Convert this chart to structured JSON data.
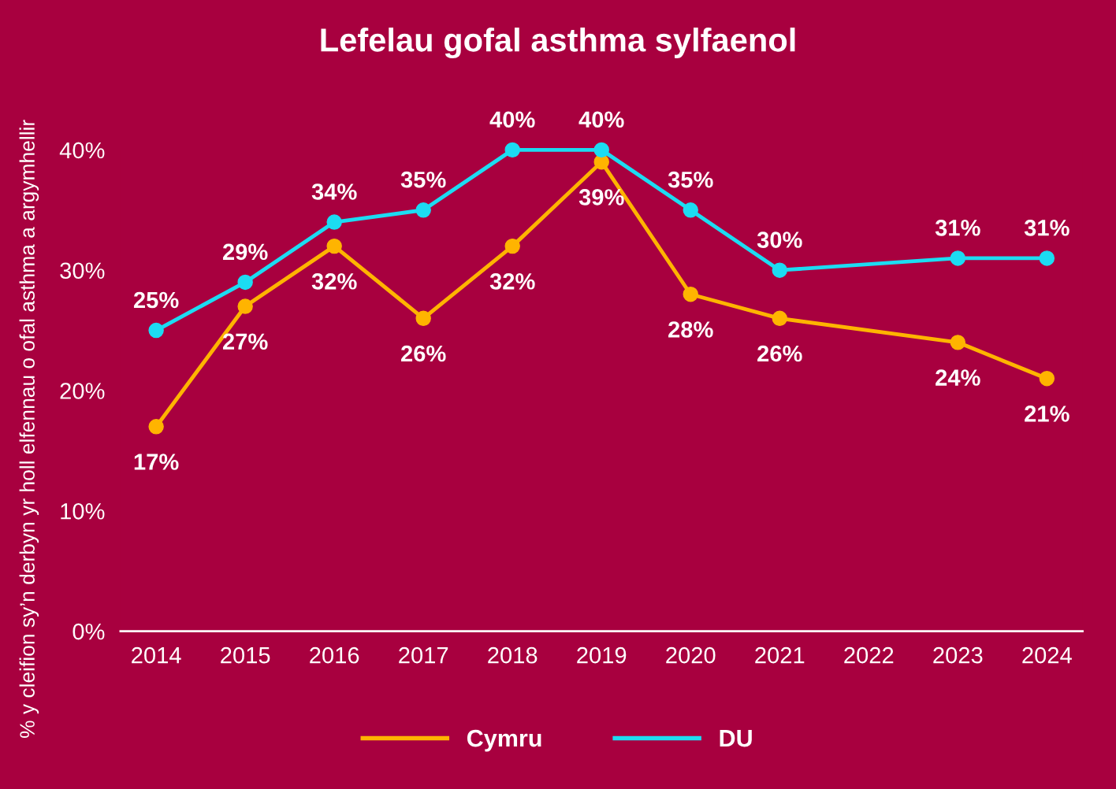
{
  "chart_data": {
    "type": "line",
    "title": "Lefelau gofal asthma sylfaenol",
    "ylabel": "% y cleifion sy’n derbyn yr holl elfennau o ofal asthma a argymhellir",
    "categories": [
      "2014",
      "2015",
      "2016",
      "2017",
      "2018",
      "2019",
      "2020",
      "2021",
      "2022",
      "2023",
      "2024"
    ],
    "series": [
      {
        "name": "Cymru",
        "color": "#ffb400",
        "values": [
          17,
          27,
          32,
          26,
          32,
          39,
          28,
          26,
          null,
          24,
          21
        ],
        "value_labels": [
          "17%",
          "27%",
          "32%",
          "26%",
          "32%",
          "39%",
          "28%",
          "26%",
          null,
          "24%",
          "21%"
        ]
      },
      {
        "name": "DU",
        "color": "#1cdcf2",
        "values": [
          25,
          29,
          34,
          35,
          40,
          40,
          35,
          30,
          null,
          31,
          31
        ],
        "value_labels": [
          "25%",
          "29%",
          "34%",
          "35%",
          "40%",
          "40%",
          "35%",
          "30%",
          null,
          "31%",
          "31%"
        ]
      }
    ],
    "ylim": [
      0,
      40
    ],
    "yticks": [
      {
        "value": 0,
        "label": "0%"
      },
      {
        "value": 10,
        "label": "10%"
      },
      {
        "value": 20,
        "label": "20%"
      },
      {
        "value": 30,
        "label": "30%"
      },
      {
        "value": 40,
        "label": "40%"
      }
    ],
    "grid": false,
    "legend": "bottom",
    "marker": "circle",
    "line_style": "solid"
  }
}
